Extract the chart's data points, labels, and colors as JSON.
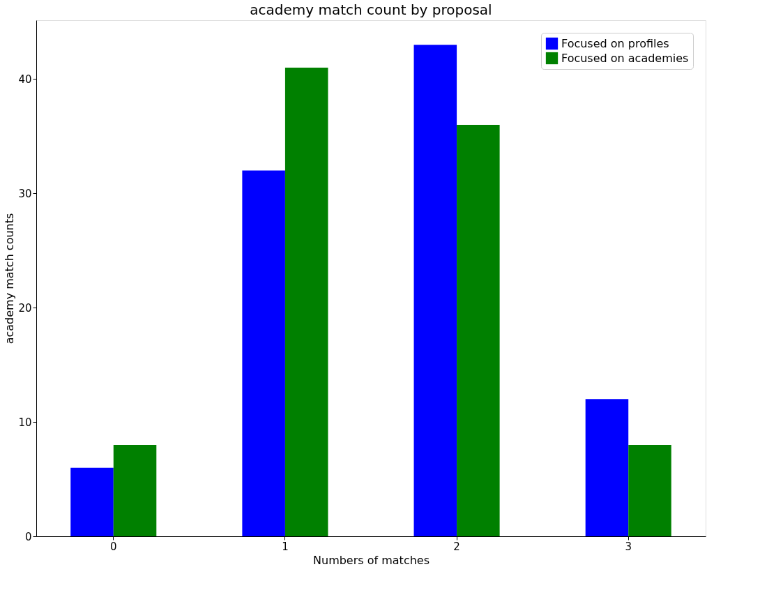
{
  "chart_data": {
    "type": "bar",
    "title": "academy match count by proposal",
    "xlabel": "Numbers of matches",
    "ylabel": "academy match counts",
    "categories": [
      "0",
      "1",
      "2",
      "3"
    ],
    "series": [
      {
        "name": "Focused on profiles",
        "color": "#0000ff",
        "values": [
          6,
          32,
          43,
          12
        ]
      },
      {
        "name": "Focused on academies",
        "color": "#008000",
        "values": [
          8,
          41,
          36,
          8
        ]
      }
    ],
    "ylim": [
      0,
      45.15
    ],
    "yticks": [
      0,
      10,
      20,
      30,
      40
    ],
    "grid": false,
    "legend": "top right"
  }
}
